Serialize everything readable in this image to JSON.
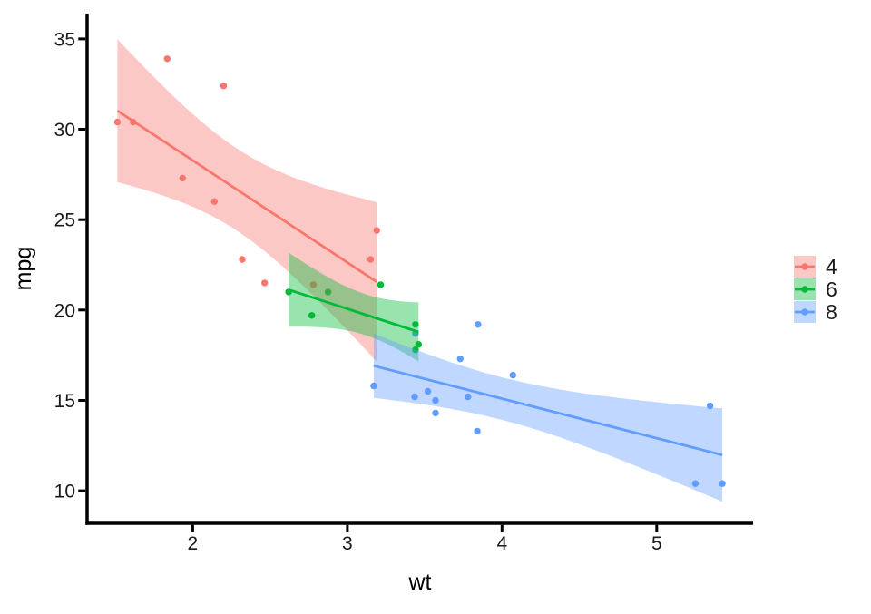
{
  "chart_data": {
    "type": "scatter",
    "title": "",
    "xlabel": "wt",
    "ylabel": "mpg",
    "xlim": [
      1.317,
      5.623
    ],
    "ylim": [
      8.2,
      36.4
    ],
    "x_ticks": [
      2,
      3,
      4,
      5
    ],
    "y_ticks": [
      10,
      15,
      20,
      25,
      30,
      35
    ],
    "grid": false,
    "theme": "classic",
    "axis_color": "#000000",
    "text_color": "#1a1a1a",
    "legend": {
      "position": "right",
      "title": "",
      "labels": [
        "4",
        "6",
        "8"
      ]
    },
    "smooth": {
      "method": "lm",
      "ci_level": 0.95,
      "ribbon_alpha": 0.4
    },
    "series": [
      {
        "name": "4",
        "color": "#F8766D",
        "points": [
          [
            2.32,
            22.8
          ],
          [
            3.19,
            24.4
          ],
          [
            3.15,
            22.8
          ],
          [
            2.2,
            32.4
          ],
          [
            1.615,
            30.4
          ],
          [
            1.835,
            33.9
          ],
          [
            2.465,
            21.5
          ],
          [
            1.935,
            27.3
          ],
          [
            2.14,
            26.0
          ],
          [
            1.513,
            30.4
          ],
          [
            2.78,
            21.4
          ]
        ]
      },
      {
        "name": "6",
        "color": "#00BA38",
        "points": [
          [
            2.62,
            21.0
          ],
          [
            2.875,
            21.0
          ],
          [
            3.215,
            21.4
          ],
          [
            3.46,
            18.1
          ],
          [
            3.44,
            19.2
          ],
          [
            3.44,
            17.8
          ],
          [
            2.77,
            19.7
          ]
        ]
      },
      {
        "name": "8",
        "color": "#619CFF",
        "points": [
          [
            3.44,
            18.7
          ],
          [
            3.57,
            14.3
          ],
          [
            4.07,
            16.4
          ],
          [
            3.73,
            17.3
          ],
          [
            3.78,
            15.2
          ],
          [
            5.25,
            10.4
          ],
          [
            5.424,
            10.4
          ],
          [
            5.345,
            14.7
          ],
          [
            3.52,
            15.5
          ],
          [
            3.435,
            15.2
          ],
          [
            3.84,
            13.3
          ],
          [
            3.845,
            19.2
          ],
          [
            3.17,
            15.8
          ],
          [
            3.57,
            15.0
          ]
        ]
      }
    ]
  }
}
